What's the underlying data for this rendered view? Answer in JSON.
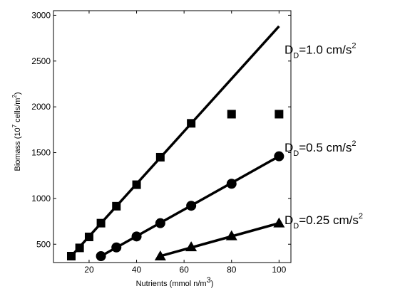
{
  "chart_data": {
    "type": "line",
    "xlabel": "Nutrients (mmol n/m",
    "xlabel_sup": "3",
    "xlabel_end": ")",
    "ylabel": "Biomass (10",
    "ylabel_sup1": "7",
    "ylabel_mid": " cells/m",
    "ylabel_sup2": "2",
    "ylabel_end": ")",
    "xlim": [
      5,
      105
    ],
    "ylim": [
      300,
      3050
    ],
    "xticks": [
      20,
      40,
      60,
      80,
      100
    ],
    "yticks": [
      500,
      1000,
      1500,
      2000,
      2500,
      3000
    ],
    "grid": false,
    "series": [
      {
        "marker": "square",
        "points": [
          [
            12.5,
            370
          ],
          [
            16,
            460
          ],
          [
            20,
            580
          ],
          [
            25,
            730
          ],
          [
            31.5,
            915
          ],
          [
            40,
            1150
          ],
          [
            50,
            1450
          ],
          [
            63,
            1820
          ],
          [
            80,
            1920
          ],
          [
            100,
            1920
          ]
        ],
        "line": [
          [
            12.5,
            370
          ],
          [
            100,
            2880
          ]
        ]
      },
      {
        "marker": "circle",
        "points": [
          [
            25,
            370
          ],
          [
            31.5,
            465
          ],
          [
            40,
            585
          ],
          [
            50,
            730
          ],
          [
            63,
            920
          ],
          [
            80,
            1160
          ],
          [
            100,
            1460
          ]
        ],
        "line": [
          [
            25,
            370
          ],
          [
            100,
            1460
          ]
        ]
      },
      {
        "marker": "triangle",
        "points": [
          [
            50,
            370
          ],
          [
            63,
            470
          ],
          [
            80,
            590
          ],
          [
            100,
            730
          ]
        ],
        "line": [
          [
            50,
            370
          ],
          [
            100,
            730
          ]
        ]
      }
    ],
    "annotations": [
      {
        "main": "D",
        "sub": "D",
        "text": "=1.0 cm/s",
        "sup": "2",
        "x": 100.5,
        "y": 2580
      },
      {
        "main": "D",
        "sub": "D",
        "text": "=0.5 cm/s",
        "sup": "2",
        "x": 100.5,
        "y": 1510
      },
      {
        "main": "D",
        "sub": "D",
        "text": "=0.25 cm/s",
        "sup": "2",
        "x": 100.5,
        "y": 720
      }
    ]
  }
}
